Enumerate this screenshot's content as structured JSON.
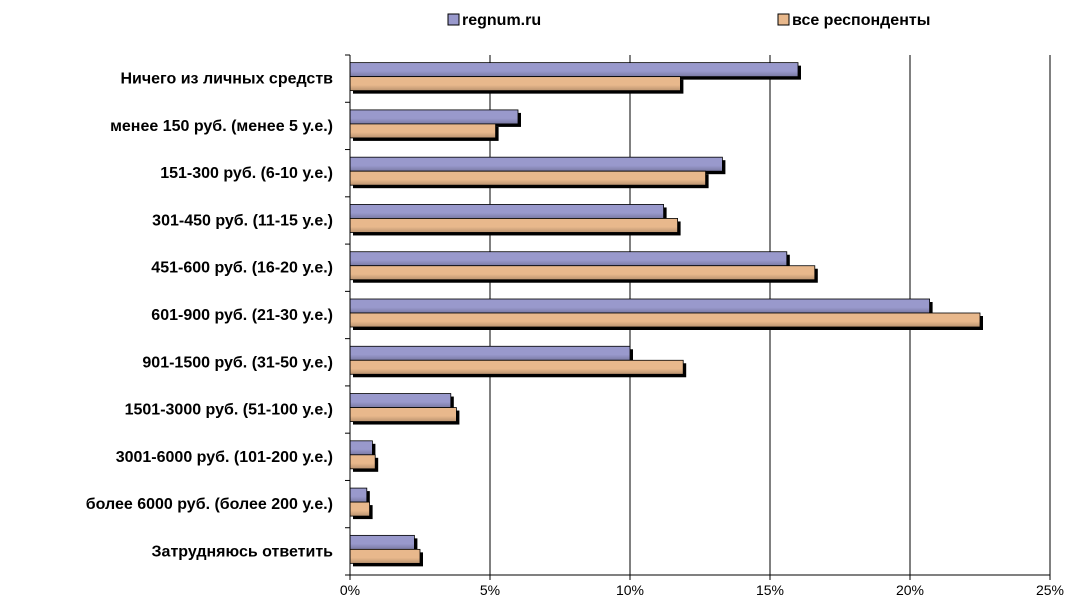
{
  "chart_data": {
    "type": "bar",
    "orientation": "horizontal",
    "categories": [
      "Ничего из личных средств",
      "менее 150 руб. (менее 5 у.е.)",
      "151-300 руб. (6-10 у.е.)",
      "301-450 руб. (11-15 у.е.)",
      "451-600 руб. (16-20 у.е.)",
      "601-900 руб. (21-30 у.е.)",
      "901-1500 руб. (31-50 у.е.)",
      "1501-3000 руб. (51-100 у.е.)",
      "3001-6000 руб. (101-200 у.е.)",
      "более 6000 руб. (более 200 у.е.)",
      "Затрудняюсь ответить"
    ],
    "series": [
      {
        "name": "regnum.ru",
        "color": "#9999cc",
        "values": [
          16.0,
          6.0,
          13.3,
          11.2,
          15.6,
          20.7,
          10.0,
          3.6,
          0.8,
          0.6,
          2.3
        ]
      },
      {
        "name": "все респонденты",
        "color": "#e8b88c",
        "values": [
          11.8,
          5.2,
          12.7,
          11.7,
          16.6,
          22.5,
          11.9,
          3.8,
          0.9,
          0.7,
          2.5
        ]
      }
    ],
    "xlim": [
      0,
      25
    ],
    "xticks": [
      "0%",
      "5%",
      "10%",
      "15%",
      "20%",
      "25%"
    ],
    "grid": true,
    "legend": "top"
  }
}
